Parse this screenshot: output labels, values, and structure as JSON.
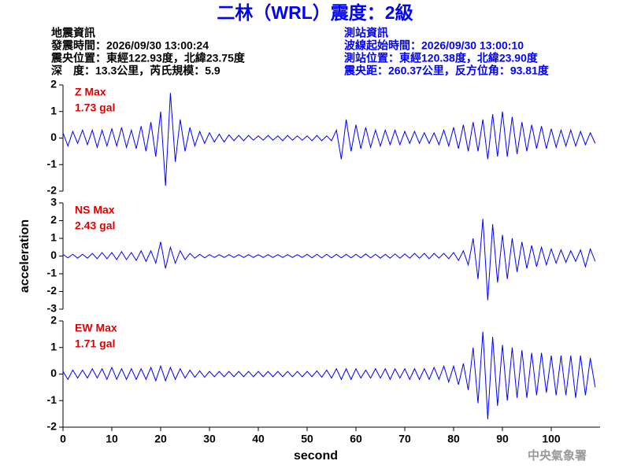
{
  "title": "二林（WRL）震度：2級",
  "info_left": [
    "地震資訊",
    "發震時間：2026/09/30 13:00:24",
    "震央位置：東經122.93度，北緯23.75度",
    "深　度：13.3公里，芮氏規模：5.9"
  ],
  "info_right": [
    "測站資訊",
    "波線起始時間：2026/09/30 13:00:10",
    "測站位置：東經120.38度，北緯23.90度",
    "震央距：260.37公里，反方位角：93.81度"
  ],
  "footer": "中央氣象署",
  "chart_data": [
    {
      "type": "line",
      "annotations": [
        "Z Max",
        "1.73 gal"
      ],
      "xlim": [
        0,
        110
      ],
      "ylim": [
        -2,
        2
      ],
      "yticks": [
        -2,
        -1,
        0,
        1,
        2
      ],
      "series": [
        {
          "color": "#0000ff",
          "x": [
            0,
            1,
            2,
            3,
            4,
            5,
            6,
            7,
            8,
            9,
            10,
            11,
            12,
            13,
            14,
            15,
            16,
            17,
            18,
            19,
            20,
            21,
            22,
            23,
            24,
            25,
            26,
            27,
            28,
            29,
            30,
            31,
            32,
            33,
            34,
            35,
            36,
            37,
            38,
            39,
            40,
            41,
            42,
            43,
            44,
            45,
            46,
            47,
            48,
            49,
            50,
            51,
            52,
            53,
            54,
            55,
            56,
            57,
            58,
            59,
            60,
            61,
            62,
            63,
            64,
            65,
            66,
            67,
            68,
            69,
            70,
            71,
            72,
            73,
            74,
            75,
            76,
            77,
            78,
            79,
            80,
            81,
            82,
            83,
            84,
            85,
            86,
            87,
            88,
            89,
            90,
            91,
            92,
            93,
            94,
            95,
            96,
            97,
            98,
            99,
            100,
            101,
            102,
            103,
            104,
            105,
            106,
            107,
            108,
            109
          ],
          "values": [
            0.2,
            -0.3,
            0.25,
            -0.2,
            0.3,
            -0.25,
            0.3,
            -0.35,
            0.3,
            -0.3,
            0.35,
            -0.3,
            0.4,
            -0.35,
            0.3,
            -0.4,
            0.45,
            -0.5,
            0.6,
            -0.7,
            1.0,
            -1.8,
            1.7,
            -0.9,
            0.7,
            -0.5,
            0.4,
            -0.3,
            0.25,
            -0.2,
            0.2,
            -0.15,
            0.15,
            -0.15,
            0.12,
            -0.1,
            0.1,
            -0.1,
            0.1,
            -0.08,
            0.08,
            -0.08,
            0.1,
            -0.08,
            0.08,
            -0.1,
            0.1,
            -0.08,
            0.08,
            -0.08,
            0.08,
            -0.1,
            0.1,
            -0.1,
            0.08,
            -0.1,
            0.3,
            -0.8,
            0.7,
            -0.5,
            0.5,
            -0.4,
            0.4,
            -0.35,
            0.3,
            -0.3,
            0.3,
            -0.25,
            0.3,
            -0.25,
            0.25,
            -0.2,
            0.25,
            -0.2,
            0.2,
            -0.2,
            0.2,
            -0.25,
            0.3,
            -0.3,
            0.4,
            -0.4,
            0.5,
            -0.5,
            0.6,
            -0.5,
            0.7,
            -0.8,
            0.9,
            -0.7,
            1.0,
            -0.7,
            0.8,
            -0.6,
            0.6,
            -0.5,
            0.5,
            -0.4,
            0.45,
            -0.4,
            0.35,
            -0.35,
            0.3,
            -0.3,
            0.3,
            -0.3,
            0.25,
            -0.25,
            0.2,
            -0.2
          ]
        }
      ]
    },
    {
      "type": "line",
      "annotations": [
        "NS Max",
        "2.43 gal"
      ],
      "ylabel": "acceleration",
      "xlim": [
        0,
        110
      ],
      "ylim": [
        -3,
        3
      ],
      "yticks": [
        -3,
        -2,
        -1,
        0,
        1,
        2,
        3
      ],
      "series": [
        {
          "color": "#0000ff",
          "x": [
            0,
            1,
            2,
            3,
            4,
            5,
            6,
            7,
            8,
            9,
            10,
            11,
            12,
            13,
            14,
            15,
            16,
            17,
            18,
            19,
            20,
            21,
            22,
            23,
            24,
            25,
            26,
            27,
            28,
            29,
            30,
            31,
            32,
            33,
            34,
            35,
            36,
            37,
            38,
            39,
            40,
            41,
            42,
            43,
            44,
            45,
            46,
            47,
            48,
            49,
            50,
            51,
            52,
            53,
            54,
            55,
            56,
            57,
            58,
            59,
            60,
            61,
            62,
            63,
            64,
            65,
            66,
            67,
            68,
            69,
            70,
            71,
            72,
            73,
            74,
            75,
            76,
            77,
            78,
            79,
            80,
            81,
            82,
            83,
            84,
            85,
            86,
            87,
            88,
            89,
            90,
            91,
            92,
            93,
            94,
            95,
            96,
            97,
            98,
            99,
            100,
            101,
            102,
            103,
            104,
            105,
            106,
            107,
            108,
            109
          ],
          "values": [
            0.1,
            -0.1,
            0.1,
            -0.12,
            0.1,
            -0.12,
            0.15,
            -0.15,
            0.2,
            -0.15,
            0.2,
            -0.2,
            0.25,
            -0.2,
            0.2,
            -0.25,
            0.3,
            -0.3,
            0.3,
            -0.4,
            0.8,
            -0.7,
            0.5,
            -0.4,
            0.3,
            -0.2,
            0.15,
            -0.12,
            0.1,
            -0.1,
            0.08,
            -0.08,
            0.08,
            -0.08,
            0.08,
            -0.08,
            0.08,
            -0.08,
            0.08,
            -0.08,
            0.08,
            -0.08,
            0.08,
            -0.08,
            0.08,
            -0.08,
            0.08,
            -0.08,
            0.08,
            -0.08,
            0.1,
            -0.1,
            0.1,
            -0.1,
            0.1,
            -0.1,
            0.1,
            -0.1,
            0.1,
            -0.1,
            0.1,
            -0.1,
            0.12,
            -0.1,
            0.1,
            -0.12,
            0.1,
            -0.12,
            0.12,
            -0.12,
            0.12,
            -0.12,
            0.15,
            -0.12,
            0.15,
            -0.15,
            0.15,
            -0.12,
            0.15,
            -0.15,
            0.2,
            -0.25,
            0.3,
            -0.5,
            1.0,
            -1.3,
            2.1,
            -2.5,
            1.8,
            -1.5,
            1.2,
            -1.3,
            1.0,
            -0.9,
            0.8,
            -0.7,
            0.6,
            -0.6,
            0.5,
            -0.5,
            0.4,
            -0.4,
            0.35,
            -0.35,
            0.3,
            -0.3,
            0.35,
            -0.6,
            0.4,
            -0.3
          ]
        }
      ]
    },
    {
      "type": "line",
      "annotations": [
        "EW Max",
        "1.71 gal"
      ],
      "xlabel": "second",
      "xlim": [
        0,
        110
      ],
      "xticks": [
        0,
        10,
        20,
        30,
        40,
        50,
        60,
        70,
        80,
        90,
        100
      ],
      "ylim": [
        -2,
        2
      ],
      "yticks": [
        -2,
        -1,
        0,
        1,
        2
      ],
      "series": [
        {
          "color": "#0000ff",
          "x": [
            0,
            1,
            2,
            3,
            4,
            5,
            6,
            7,
            8,
            9,
            10,
            11,
            12,
            13,
            14,
            15,
            16,
            17,
            18,
            19,
            20,
            21,
            22,
            23,
            24,
            25,
            26,
            27,
            28,
            29,
            30,
            31,
            32,
            33,
            34,
            35,
            36,
            37,
            38,
            39,
            40,
            41,
            42,
            43,
            44,
            45,
            46,
            47,
            48,
            49,
            50,
            51,
            52,
            53,
            54,
            55,
            56,
            57,
            58,
            59,
            60,
            61,
            62,
            63,
            64,
            65,
            66,
            67,
            68,
            69,
            70,
            71,
            72,
            73,
            74,
            75,
            76,
            77,
            78,
            79,
            80,
            81,
            82,
            83,
            84,
            85,
            86,
            87,
            88,
            89,
            90,
            91,
            92,
            93,
            94,
            95,
            96,
            97,
            98,
            99,
            100,
            101,
            102,
            103,
            104,
            105,
            106,
            107,
            108,
            109
          ],
          "values": [
            0.1,
            -0.2,
            0.15,
            -0.15,
            0.15,
            -0.15,
            0.2,
            -0.15,
            0.2,
            -0.2,
            0.25,
            -0.2,
            0.2,
            -0.2,
            0.2,
            -0.2,
            0.2,
            -0.2,
            0.25,
            -0.25,
            0.3,
            -0.25,
            0.25,
            -0.2,
            0.2,
            -0.15,
            0.15,
            -0.12,
            0.12,
            -0.12,
            0.1,
            -0.1,
            0.1,
            -0.1,
            0.1,
            -0.1,
            0.1,
            -0.1,
            0.1,
            -0.1,
            0.1,
            -0.1,
            0.1,
            -0.1,
            0.1,
            -0.1,
            0.1,
            -0.1,
            0.1,
            -0.1,
            0.1,
            -0.1,
            0.12,
            -0.12,
            0.15,
            -0.15,
            0.2,
            -0.2,
            0.2,
            -0.2,
            0.2,
            -0.15,
            0.15,
            -0.15,
            0.2,
            -0.15,
            0.2,
            -0.2,
            0.2,
            -0.15,
            0.2,
            -0.2,
            0.2,
            -0.2,
            0.2,
            -0.2,
            0.25,
            -0.2,
            0.3,
            -0.3,
            0.3,
            -0.4,
            0.4,
            -0.6,
            1.0,
            -1.1,
            1.6,
            -1.7,
            1.4,
            -1.2,
            1.1,
            -1.0,
            1.0,
            -0.9,
            0.9,
            -0.9,
            0.8,
            -0.8,
            0.8,
            -0.7,
            0.7,
            -0.8,
            0.7,
            -0.8,
            0.7,
            -0.9,
            0.7,
            -0.8,
            0.6,
            -0.5
          ]
        }
      ]
    }
  ]
}
